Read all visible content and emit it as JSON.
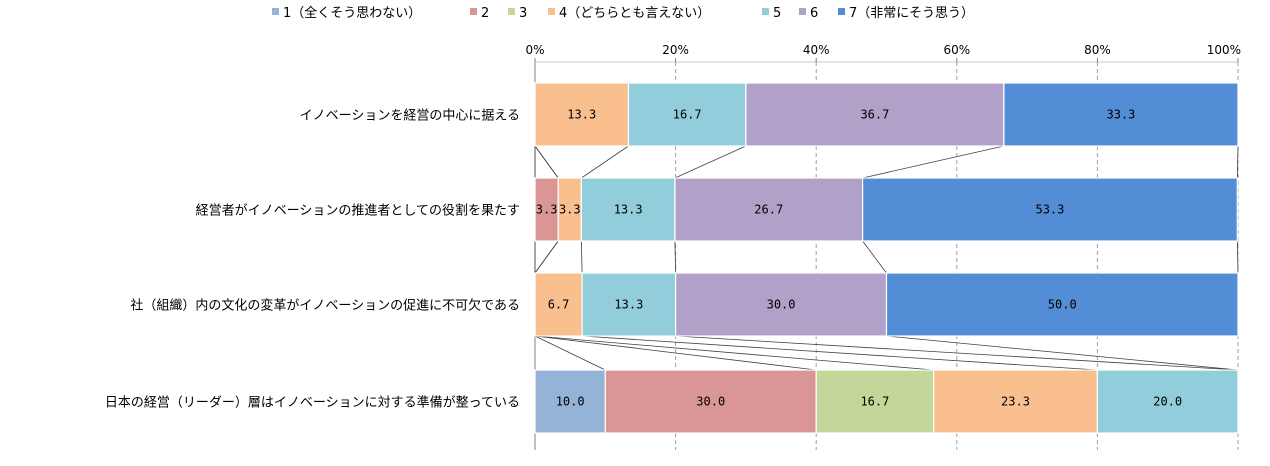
{
  "chart_data": {
    "type": "bar",
    "orientation": "horizontal",
    "stacked": "percent",
    "series_line_connectors": true,
    "legend_position": "top",
    "x_ticks": [
      "0%",
      "20%",
      "40%",
      "60%",
      "80%",
      "100%"
    ],
    "xlim": [
      0,
      100
    ],
    "categories": [
      "イノベーションを経営の中心に据える",
      "経営者がイノベーションの推進者としての役割を果たす",
      "社（組織）内の文化の変革がイノベーションの促進に不可欠である",
      "日本の経営（リーダー）層はイノベーションに対する準備が整っている"
    ],
    "series": [
      {
        "name": "1（全くそう思わない）",
        "color": "#95B3D7",
        "values": [
          0,
          0,
          0,
          10.0
        ],
        "labels": [
          "",
          "",
          "",
          "10.0"
        ]
      },
      {
        "name": "2",
        "color": "#DA9694",
        "values": [
          0,
          3.3,
          0,
          30.0
        ],
        "labels": [
          "",
          "3.3",
          "",
          "30.0"
        ]
      },
      {
        "name": "3",
        "color": "#C4D79B",
        "values": [
          0,
          0,
          0,
          16.7
        ],
        "labels": [
          "",
          "",
          "",
          "16.7"
        ]
      },
      {
        "name": "4（どちらとも言えない）",
        "color": "#FABF8F",
        "values": [
          13.3,
          3.3,
          6.7,
          23.3
        ],
        "labels": [
          "13.3",
          "3.3",
          "6.7",
          "23.3"
        ]
      },
      {
        "name": "5",
        "color": "#92CDDC",
        "values": [
          16.7,
          13.3,
          13.3,
          20.0
        ],
        "labels": [
          "16.7",
          "13.3",
          "13.3",
          "20.0"
        ]
      },
      {
        "name": "6",
        "color": "#B1A0C7",
        "values": [
          36.7,
          26.7,
          30.0,
          0
        ],
        "labels": [
          "36.7",
          "26.7",
          "30.0",
          ""
        ]
      },
      {
        "name": "7（非常にそう思う）",
        "color": "#538DD5",
        "values": [
          33.3,
          53.3,
          50.0,
          0
        ],
        "labels": [
          "33.3",
          "53.3",
          "50.0",
          ""
        ]
      }
    ]
  }
}
